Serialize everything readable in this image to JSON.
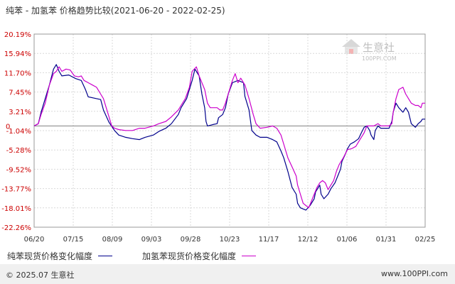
{
  "title": "纯苯 - 加氢苯 价格趋势比较(2021-06-20 - 2022-02-25)",
  "watermark": {
    "brand": "生意社",
    "site": "100PPI.COM"
  },
  "legend": [
    {
      "label": "纯苯现货价格变化幅度",
      "color": "#00008b"
    },
    {
      "label": "加氢苯现货价格变化幅度",
      "color": "#cc00cc"
    }
  ],
  "footer": {
    "copyright": "© 2025.07 生意社",
    "url": "www.100PPI.com"
  },
  "chart_data": {
    "type": "line",
    "ylim": [
      -22.26,
      20.19
    ],
    "yticks": [
      "20.19%",
      "15.94%",
      "11.70%",
      "7.45%",
      "3.21%",
      "-1.04%",
      "-5.28%",
      "-9.52%",
      "-13.77%",
      "-18.01%",
      "-22.26%"
    ],
    "ytick_values": [
      20.19,
      15.94,
      11.7,
      7.45,
      3.21,
      -1.04,
      -5.28,
      -9.52,
      -13.77,
      -18.01,
      -22.26
    ],
    "zero_label": "0",
    "xticks": [
      "06/20",
      "07/15",
      "08/09",
      "09/03",
      "09/28",
      "10/23",
      "11/17",
      "12/12",
      "01/06",
      "01/31",
      "02/25"
    ],
    "grid": true,
    "series": [
      {
        "name": "纯苯现货价格变化幅度",
        "color": "#00008b",
        "points": [
          [
            0,
            0
          ],
          [
            3,
            0.5
          ],
          [
            5,
            3
          ],
          [
            8,
            6
          ],
          [
            11,
            9
          ],
          [
            14,
            12.5
          ],
          [
            16,
            13.5
          ],
          [
            18,
            12
          ],
          [
            20,
            11
          ],
          [
            25,
            11.2
          ],
          [
            30,
            10.4
          ],
          [
            34,
            10
          ],
          [
            37,
            8
          ],
          [
            39,
            6.4
          ],
          [
            45,
            6
          ],
          [
            48,
            5.8
          ],
          [
            50,
            3.5
          ],
          [
            54,
            0.8
          ],
          [
            58,
            -1
          ],
          [
            61,
            -2
          ],
          [
            66,
            -2.5
          ],
          [
            71,
            -2.8
          ],
          [
            76,
            -3
          ],
          [
            80,
            -2.5
          ],
          [
            86,
            -2
          ],
          [
            90,
            -1.2
          ],
          [
            95,
            -0.5
          ],
          [
            99,
            0.5
          ],
          [
            104,
            2.5
          ],
          [
            106,
            4
          ],
          [
            110,
            6
          ],
          [
            114,
            10
          ],
          [
            116,
            12.5
          ],
          [
            119,
            11
          ],
          [
            121,
            7
          ],
          [
            123,
            4
          ],
          [
            124,
            1
          ],
          [
            125,
            0
          ],
          [
            129,
            0.3
          ],
          [
            132,
            0.5
          ],
          [
            133,
            1.8
          ],
          [
            136,
            2.5
          ],
          [
            138,
            4
          ],
          [
            140,
            7
          ],
          [
            143,
            9.5
          ],
          [
            147,
            10
          ],
          [
            151,
            9.5
          ],
          [
            152,
            6.5
          ],
          [
            155,
            3.5
          ],
          [
            157,
            -1
          ],
          [
            160,
            -2
          ],
          [
            163,
            -2.5
          ],
          [
            168,
            -2.5
          ],
          [
            172,
            -3
          ],
          [
            175,
            -3.5
          ],
          [
            178,
            -5.5
          ],
          [
            180,
            -7
          ],
          [
            183,
            -10
          ],
          [
            186,
            -13.5
          ],
          [
            189,
            -15
          ],
          [
            190,
            -17
          ],
          [
            192,
            -18
          ],
          [
            196,
            -18.5
          ],
          [
            199,
            -17.5
          ],
          [
            202,
            -16
          ],
          [
            203,
            -14.5
          ],
          [
            206,
            -13
          ],
          [
            207,
            -15
          ],
          [
            209,
            -16
          ],
          [
            212,
            -15
          ],
          [
            214,
            -13.8
          ],
          [
            217,
            -12.5
          ],
          [
            219,
            -11
          ],
          [
            221,
            -9.5
          ],
          [
            222,
            -7.8
          ],
          [
            224,
            -6.5
          ],
          [
            226,
            -5
          ],
          [
            228,
            -4
          ],
          [
            231,
            -3.5
          ],
          [
            234,
            -2.8
          ],
          [
            236,
            -1.5
          ],
          [
            238,
            -0.3
          ],
          [
            240,
            0
          ],
          [
            242,
            -1
          ],
          [
            243,
            -2
          ],
          [
            245,
            -3
          ],
          [
            246,
            -1
          ],
          [
            248,
            0
          ],
          [
            250,
            -0.5
          ],
          [
            253,
            -0.5
          ],
          [
            256,
            -0.5
          ],
          [
            258,
            1
          ],
          [
            259,
            3
          ],
          [
            261,
            5
          ],
          [
            263,
            4
          ],
          [
            266,
            3
          ],
          [
            268,
            4
          ],
          [
            270,
            3
          ],
          [
            272,
            0.5
          ],
          [
            275,
            -0.3
          ],
          [
            277,
            0.5
          ],
          [
            279,
            1
          ],
          [
            280,
            1.5
          ],
          [
            282,
            1.5
          ]
        ]
      },
      {
        "name": "加氢苯现货价格变化幅度",
        "color": "#cc00cc",
        "points": [
          [
            0,
            0
          ],
          [
            3,
            0.5
          ],
          [
            5,
            2.5
          ],
          [
            8,
            5
          ],
          [
            11,
            9
          ],
          [
            14,
            11.5
          ],
          [
            16,
            12
          ],
          [
            18,
            13
          ],
          [
            20,
            12
          ],
          [
            23,
            12.5
          ],
          [
            26,
            12.3
          ],
          [
            29,
            11
          ],
          [
            32,
            10.8
          ],
          [
            34,
            11
          ],
          [
            36,
            10
          ],
          [
            39,
            9.5
          ],
          [
            42,
            9
          ],
          [
            45,
            8.5
          ],
          [
            48,
            7
          ],
          [
            50,
            6
          ],
          [
            52,
            4
          ],
          [
            54,
            2
          ],
          [
            56,
            0
          ],
          [
            58,
            -0.5
          ],
          [
            61,
            -0.8
          ],
          [
            66,
            -1
          ],
          [
            71,
            -1
          ],
          [
            76,
            -0.5
          ],
          [
            80,
            -0.5
          ],
          [
            86,
            0
          ],
          [
            90,
            0.5
          ],
          [
            95,
            1
          ],
          [
            99,
            2
          ],
          [
            104,
            3.5
          ],
          [
            106,
            4.5
          ],
          [
            109,
            6
          ],
          [
            112,
            8.5
          ],
          [
            114,
            12
          ],
          [
            117,
            13
          ],
          [
            119,
            11
          ],
          [
            121,
            9.5
          ],
          [
            123,
            8
          ],
          [
            125,
            5
          ],
          [
            127,
            4
          ],
          [
            132,
            4
          ],
          [
            134,
            3.5
          ],
          [
            136,
            3.5
          ],
          [
            138,
            5
          ],
          [
            140,
            7
          ],
          [
            143,
            10
          ],
          [
            145,
            11.5
          ],
          [
            147,
            9.5
          ],
          [
            149,
            10.5
          ],
          [
            152,
            9
          ],
          [
            155,
            6
          ],
          [
            158,
            2.5
          ],
          [
            160,
            0.5
          ],
          [
            163,
            -0.5
          ],
          [
            168,
            -0.3
          ],
          [
            172,
            0
          ],
          [
            175,
            -0.5
          ],
          [
            178,
            -2
          ],
          [
            180,
            -4
          ],
          [
            183,
            -7
          ],
          [
            186,
            -9
          ],
          [
            189,
            -11
          ],
          [
            190,
            -13
          ],
          [
            192,
            -15
          ],
          [
            194,
            -17
          ],
          [
            196,
            -17.5
          ],
          [
            198,
            -18
          ],
          [
            200,
            -16.5
          ],
          [
            202,
            -15
          ],
          [
            204,
            -13.5
          ],
          [
            206,
            -12.5
          ],
          [
            208,
            -12
          ],
          [
            210,
            -12.5
          ],
          [
            212,
            -14
          ],
          [
            214,
            -13
          ],
          [
            216,
            -12
          ],
          [
            218,
            -10
          ],
          [
            220,
            -8.5
          ],
          [
            223,
            -7
          ],
          [
            226,
            -5.2
          ],
          [
            229,
            -5
          ],
          [
            232,
            -4.5
          ],
          [
            235,
            -3
          ],
          [
            238,
            -1.5
          ],
          [
            240,
            0
          ],
          [
            243,
            0
          ],
          [
            245,
            0
          ],
          [
            248,
            0.5
          ],
          [
            250,
            0
          ],
          [
            253,
            0
          ],
          [
            256,
            0
          ],
          [
            258,
            0.5
          ],
          [
            259,
            3
          ],
          [
            261,
            6
          ],
          [
            263,
            8
          ],
          [
            266,
            8.5
          ],
          [
            268,
            7
          ],
          [
            270,
            6
          ],
          [
            272,
            5
          ],
          [
            275,
            4.5
          ],
          [
            277,
            4.5
          ],
          [
            279,
            4
          ],
          [
            280,
            5
          ],
          [
            282,
            5
          ]
        ]
      }
    ]
  }
}
